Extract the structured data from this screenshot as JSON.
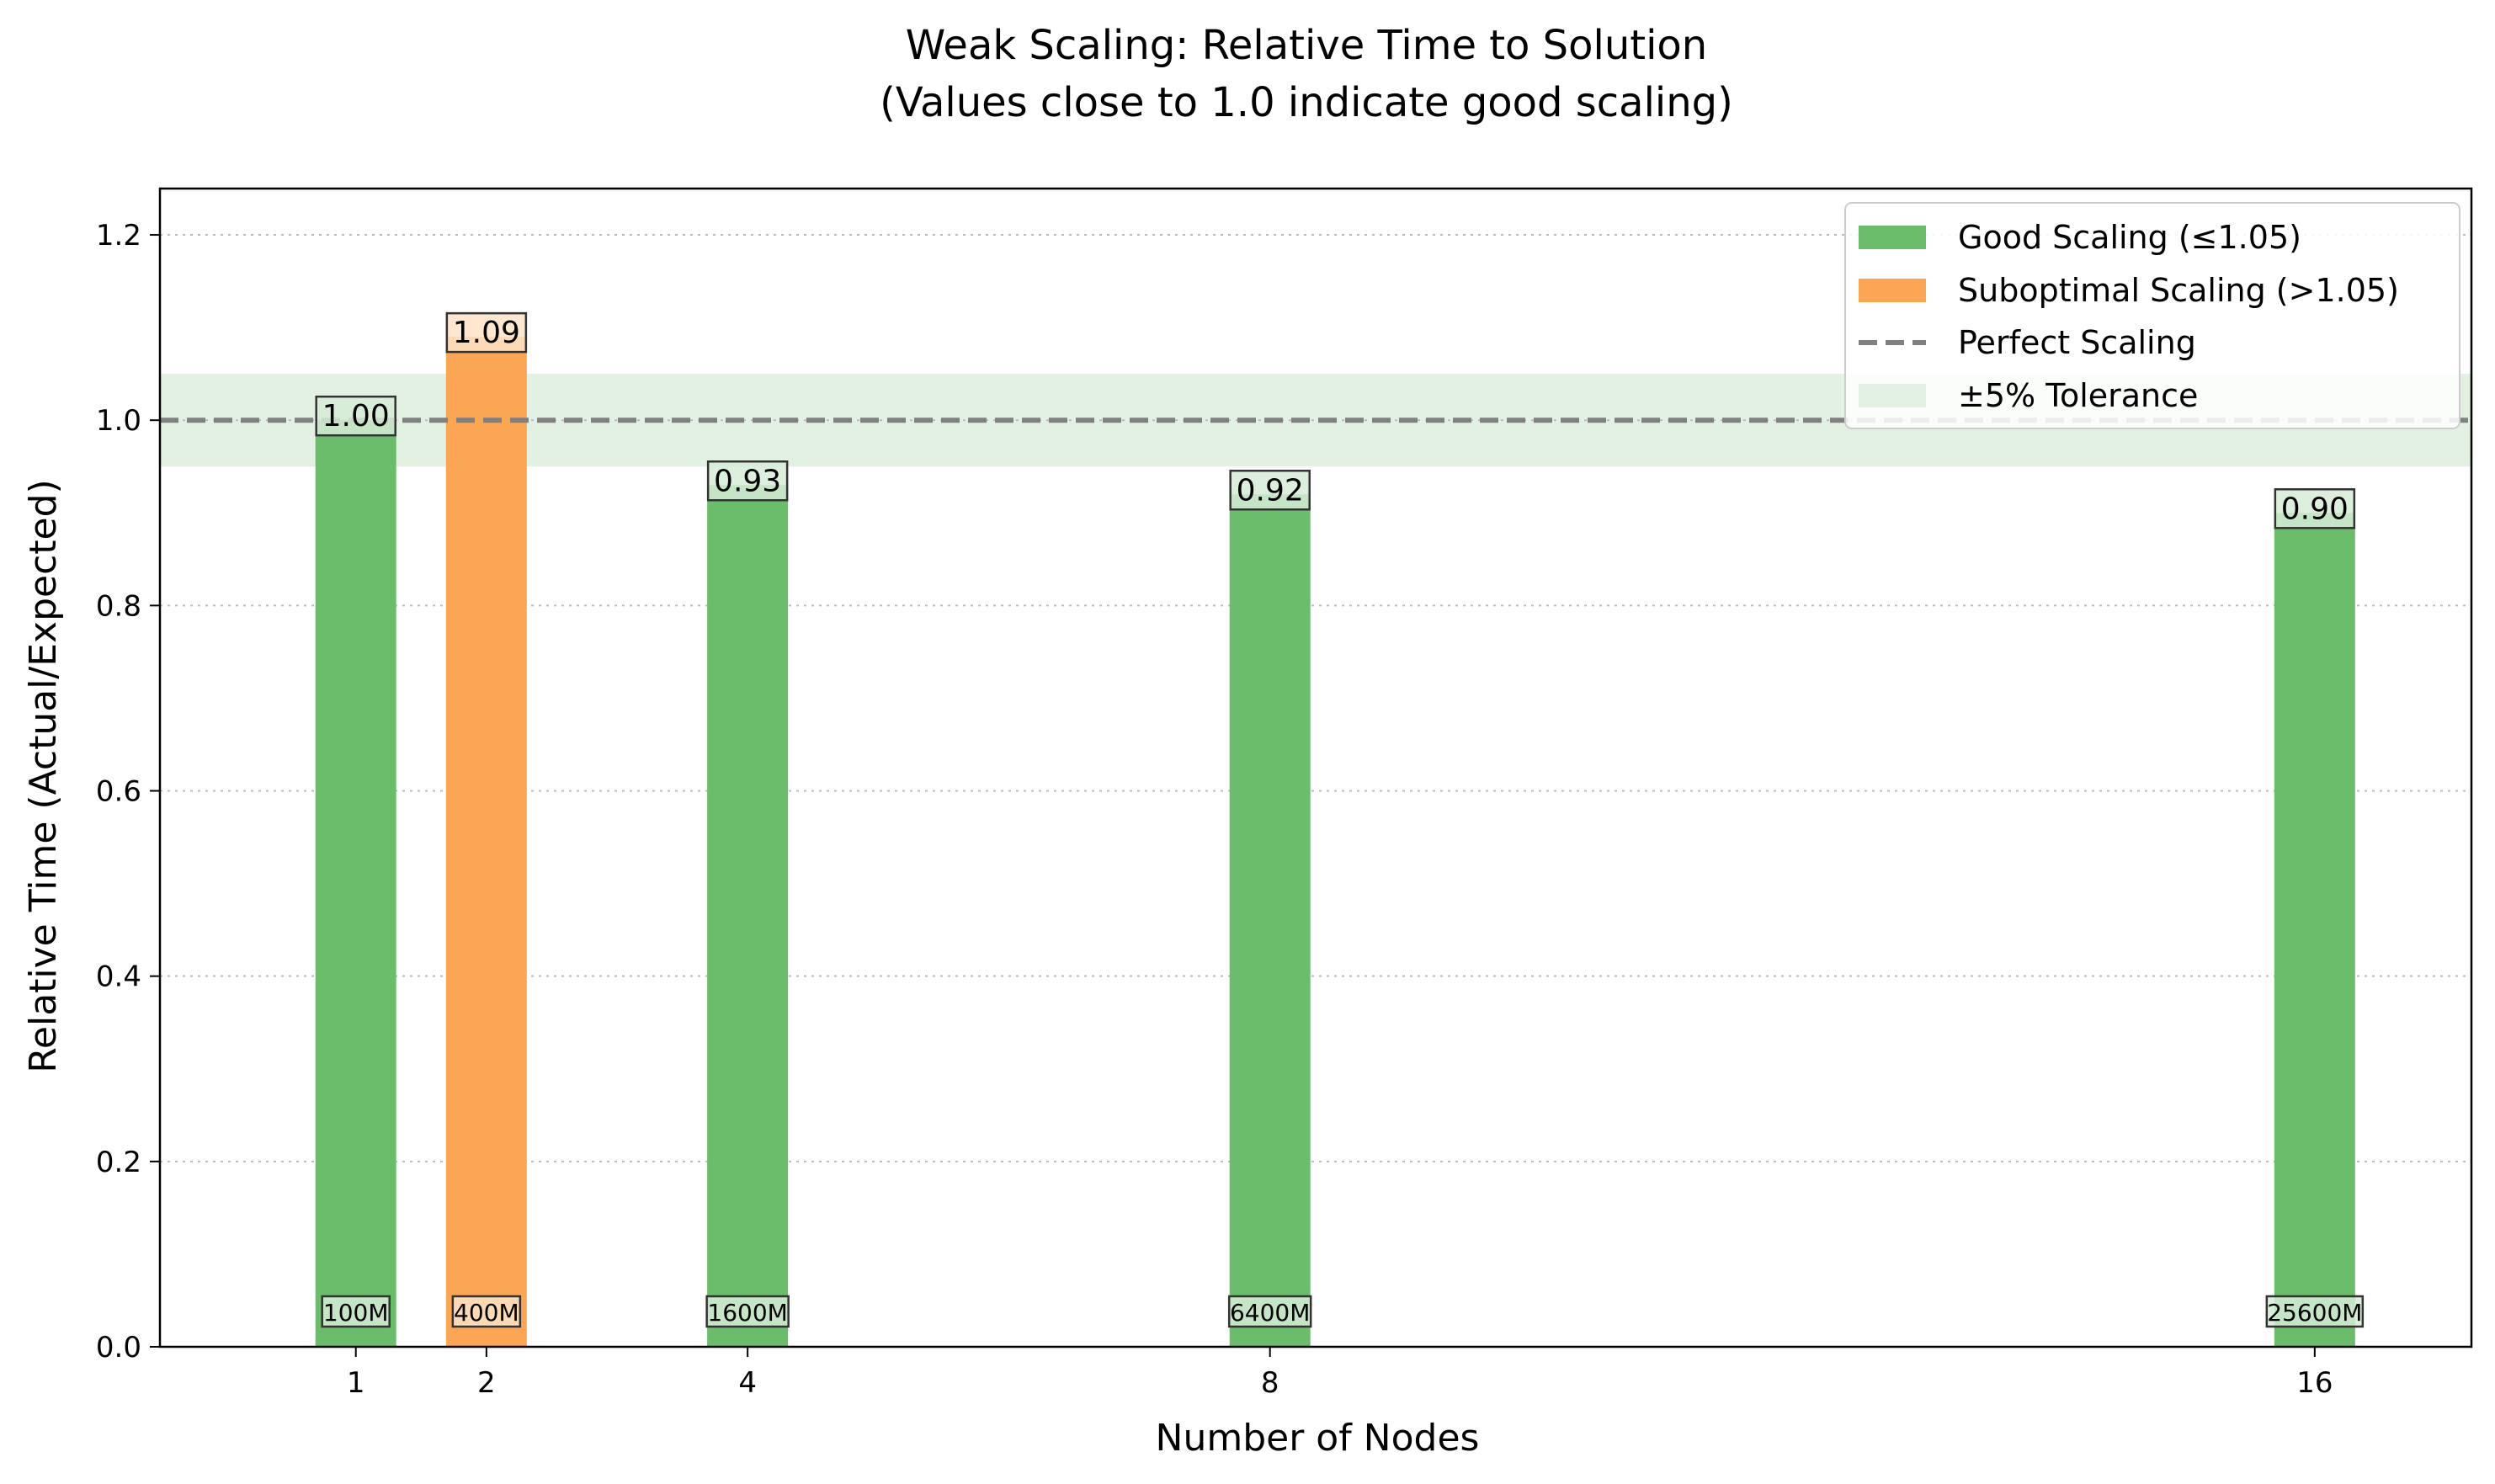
{
  "chart_data": {
    "type": "bar",
    "title": "Weak Scaling: Relative Time to Solution",
    "subtitle": "(Values close to 1.0 indicate good scaling)",
    "xlabel": "Number of Nodes",
    "ylabel": "Relative Time (Actual/Expected)",
    "x": [
      1,
      2,
      4,
      8,
      16
    ],
    "x_tick_labels": [
      "1",
      "2",
      "4",
      "8",
      "16"
    ],
    "values": [
      1.0,
      1.09,
      0.93,
      0.92,
      0.9
    ],
    "value_labels": [
      "1.00",
      "1.09",
      "0.93",
      "0.92",
      "0.90"
    ],
    "problem_sizes": [
      "100M",
      "400M",
      "1600M",
      "6400M",
      "25600M"
    ],
    "categories_status": [
      "good",
      "suboptimal",
      "good",
      "good",
      "good"
    ],
    "xlim": [
      -0.5,
      17.2
    ],
    "ylim": [
      0,
      1.25
    ],
    "y_ticks": [
      0.0,
      0.2,
      0.4,
      0.6,
      0.8,
      1.0,
      1.2
    ],
    "y_tick_labels": [
      "0.0",
      "0.2",
      "0.4",
      "0.6",
      "0.8",
      "1.0",
      "1.2"
    ],
    "reference_line": 1.0,
    "tolerance_band": [
      0.95,
      1.05
    ],
    "grid": "y-dotted",
    "legend_position": "top-right",
    "legend": [
      {
        "label": "Good Scaling (≤1.05)",
        "kind": "patch",
        "color": "#6bbd6b"
      },
      {
        "label": "Suboptimal Scaling (>1.05)",
        "kind": "patch",
        "color": "#fba655"
      },
      {
        "label": "Perfect Scaling",
        "kind": "dashed-line",
        "color": "#808080"
      },
      {
        "label": "±5% Tolerance",
        "kind": "patch",
        "color": "#e3f1e3"
      }
    ],
    "colors": {
      "good": "#6bbd6b",
      "suboptimal": "#fba655",
      "reference": "#808080",
      "tolerance": "#e3f1e3",
      "grid": "#bbbbbb"
    }
  }
}
